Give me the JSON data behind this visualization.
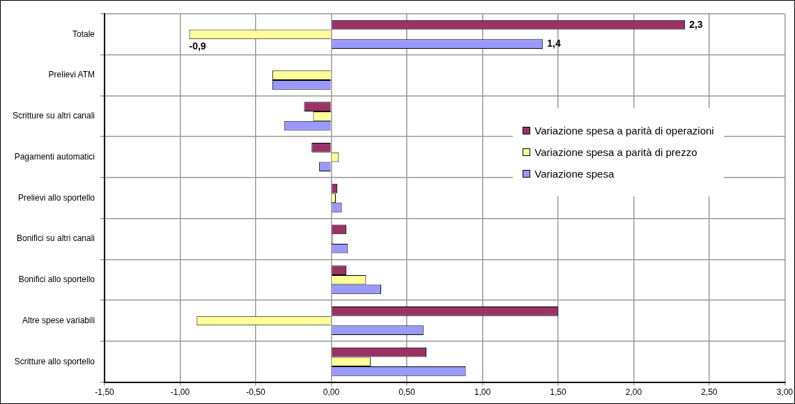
{
  "chart_data": {
    "type": "bar",
    "orientation": "horizontal",
    "categories": [
      "Totale",
      "Prelievi ATM",
      "Scritture su altri canali",
      "Pagamenti automatici",
      "Prelievi allo sportello",
      "Bonifici su altri canali",
      "Bonifici allo sportello",
      "Altre spese variabili",
      "Scritture allo sportello"
    ],
    "series": [
      {
        "name": "Variazione spesa a parità di operazioni",
        "color": "#993366",
        "values": [
          2.34,
          0,
          -0.18,
          -0.13,
          0.04,
          0.1,
          0.1,
          1.5,
          0.63
        ],
        "value_labels": [
          "2,3",
          null,
          null,
          null,
          null,
          null,
          null,
          null,
          null
        ]
      },
      {
        "name": "Variazione spesa a parità di prezzo",
        "color": "#ffff99",
        "values": [
          -0.94,
          -0.39,
          -0.12,
          0.05,
          0.03,
          0.01,
          0.23,
          -0.89,
          0.26
        ],
        "value_labels": [
          "-0,9",
          null,
          null,
          null,
          null,
          null,
          null,
          null,
          null
        ]
      },
      {
        "name": "Variazione spesa",
        "color": "#9999ff",
        "values": [
          1.4,
          -0.39,
          -0.31,
          -0.08,
          0.07,
          0.11,
          0.33,
          0.61,
          0.89
        ],
        "value_labels": [
          "1,4",
          null,
          null,
          null,
          null,
          null,
          null,
          null,
          null
        ]
      }
    ],
    "xlim": [
      -1.5,
      3
    ],
    "xticks": [
      {
        "value": -1.5,
        "label": "-1,50"
      },
      {
        "value": -1,
        "label": "-1,00"
      },
      {
        "value": -0.5,
        "label": "-0,50"
      },
      {
        "value": 0,
        "label": "0,00"
      },
      {
        "value": 0.5,
        "label": "0,50"
      },
      {
        "value": 1,
        "label": "1,00"
      },
      {
        "value": 1.5,
        "label": "1,50"
      },
      {
        "value": 2,
        "label": "2,00"
      },
      {
        "value": 2.5,
        "label": "2,50"
      },
      {
        "value": 3,
        "label": "3,00"
      }
    ],
    "grid": true,
    "legend": "right"
  }
}
